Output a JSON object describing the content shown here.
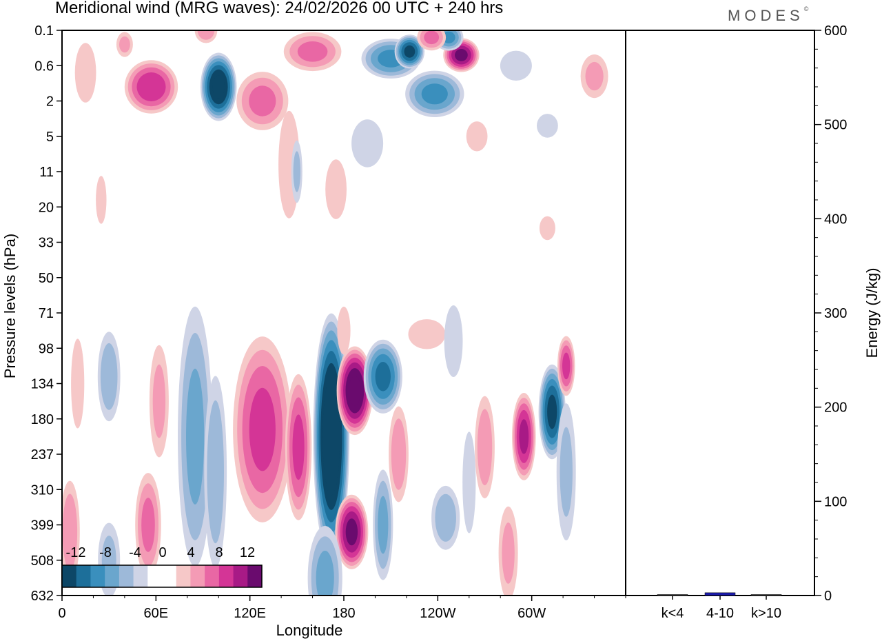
{
  "title": "Meridional wind (MRG waves):  24/02/2026  00 UTC  + 240 hrs",
  "brand": "MODES",
  "brand_mark": "©",
  "colors": {
    "neg": [
      "#0d4767",
      "#1d6f9a",
      "#3a8fbd",
      "#6aa6cd",
      "#9db9d9",
      "#cfd4e6"
    ],
    "pos": [
      "#f6c8c8",
      "#f49bb5",
      "#e967a4",
      "#d43596",
      "#a81a86",
      "#6a0b6e"
    ],
    "energy_bar": "#1a1aa8"
  },
  "chart_data": [
    {
      "type": "heatmap",
      "xlabel": "Longitude",
      "ylabel": "Pressure levels (hPa)",
      "x_ticks": [
        "0",
        "60E",
        "120E",
        "180",
        "120W",
        "60W"
      ],
      "y_ticks": [
        "0.1",
        "0.6",
        "2",
        "5",
        "11",
        "20",
        "33",
        "50",
        "71",
        "98",
        "134",
        "180",
        "237",
        "310",
        "399",
        "508",
        "632"
      ],
      "colorbar_labels": [
        "-12",
        "-8",
        "-4",
        "0",
        "4",
        "8",
        "12"
      ],
      "colorbar_levels": [
        -14,
        -12,
        -10,
        -8,
        -6,
        -4,
        -2,
        2,
        4,
        6,
        8,
        10,
        12,
        14
      ],
      "features": [
        {
          "lon": 172,
          "level": 11.5,
          "w": 12,
          "h": 3.6,
          "v": -16
        },
        {
          "lon": 187,
          "level": 10.2,
          "w": 12,
          "h": 1.3,
          "v": 14
        },
        {
          "lon": 205,
          "level": 9.8,
          "w": 13,
          "h": 1.1,
          "v": -10
        },
        {
          "lon": 185,
          "level": 14.2,
          "w": 11,
          "h": 1.1,
          "v": 12
        },
        {
          "lon": 128,
          "level": 11.3,
          "w": 20,
          "h": 2.8,
          "v": 8
        },
        {
          "lon": 151,
          "level": 11.8,
          "w": 9,
          "h": 2.2,
          "v": 8
        },
        {
          "lon": 295,
          "level": 11.5,
          "w": 8,
          "h": 1.3,
          "v": 10
        },
        {
          "lon": 313,
          "level": 10.8,
          "w": 9,
          "h": 1.4,
          "v": -12
        },
        {
          "lon": 322,
          "level": 9.5,
          "w": 6,
          "h": 0.9,
          "v": 8
        },
        {
          "lon": 30,
          "level": 9.8,
          "w": 8,
          "h": 1.4,
          "v": -5
        },
        {
          "lon": 85,
          "level": 11.5,
          "w": 12,
          "h": 4.0,
          "v": -6
        },
        {
          "lon": 98,
          "level": 12.5,
          "w": 8,
          "h": 3.0,
          "v": -5
        },
        {
          "lon": 62,
          "level": 10.5,
          "w": 7,
          "h": 1.8,
          "v": 4
        },
        {
          "lon": 55,
          "level": 14.0,
          "w": 9,
          "h": 1.6,
          "v": 6
        },
        {
          "lon": 5,
          "level": 14.2,
          "w": 7,
          "h": 1.6,
          "v": 5
        },
        {
          "lon": 10,
          "level": 10.0,
          "w": 5,
          "h": 1.5,
          "v": 3
        },
        {
          "lon": 30,
          "level": 15.0,
          "w": 8,
          "h": 1.2,
          "v": -4
        },
        {
          "lon": 168,
          "level": 15.5,
          "w": 12,
          "h": 1.6,
          "v": -6
        },
        {
          "lon": 205,
          "level": 14.0,
          "w": 7,
          "h": 1.7,
          "v": -6
        },
        {
          "lon": 215,
          "level": 12.0,
          "w": 7,
          "h": 1.5,
          "v": 5
        },
        {
          "lon": 245,
          "level": 13.8,
          "w": 10,
          "h": 1.0,
          "v": -5
        },
        {
          "lon": 270,
          "level": 11.8,
          "w": 7,
          "h": 1.6,
          "v": 5
        },
        {
          "lon": 285,
          "level": 14.8,
          "w": 7,
          "h": 1.5,
          "v": 4
        },
        {
          "lon": 322,
          "level": 12.5,
          "w": 7,
          "h": 2.2,
          "v": -4
        },
        {
          "lon": 260,
          "level": 12.8,
          "w": 5,
          "h": 1.7,
          "v": -3
        },
        {
          "lon": 233,
          "level": 8.6,
          "w": 14,
          "h": 0.5,
          "v": 3
        },
        {
          "lon": 250,
          "level": 8.8,
          "w": 7,
          "h": 1.2,
          "v": -3
        },
        {
          "lon": 180,
          "level": 8.5,
          "w": 5,
          "h": 0.8,
          "v": 3
        },
        {
          "lon": 100,
          "level": 1.6,
          "w": 12,
          "h": 1.0,
          "v": -14
        },
        {
          "lon": 57,
          "level": 1.6,
          "w": 18,
          "h": 0.8,
          "v": 9
        },
        {
          "lon": 128,
          "level": 2.0,
          "w": 18,
          "h": 0.9,
          "v": 6
        },
        {
          "lon": 92,
          "level": 0.0,
          "w": 8,
          "h": 0.4,
          "v": 5
        },
        {
          "lon": 40,
          "level": 0.4,
          "w": 6,
          "h": 0.4,
          "v": 4
        },
        {
          "lon": 160,
          "level": 0.6,
          "w": 20,
          "h": 0.6,
          "v": 6
        },
        {
          "lon": 210,
          "level": 0.8,
          "w": 20,
          "h": 0.6,
          "v": -8
        },
        {
          "lon": 222,
          "level": 0.6,
          "w": 10,
          "h": 0.5,
          "v": -12
        },
        {
          "lon": 255,
          "level": 0.7,
          "w": 12,
          "h": 0.5,
          "v": 12
        },
        {
          "lon": 247,
          "level": 0.2,
          "w": 10,
          "h": 0.4,
          "v": -8
        },
        {
          "lon": 236,
          "level": 0.2,
          "w": 10,
          "h": 0.4,
          "v": 6
        },
        {
          "lon": 238,
          "level": 1.8,
          "w": 20,
          "h": 0.7,
          "v": -8
        },
        {
          "lon": 15,
          "level": 1.2,
          "w": 8,
          "h": 1.0,
          "v": 3
        },
        {
          "lon": 145,
          "level": 3.8,
          "w": 8,
          "h": 1.8,
          "v": 3
        },
        {
          "lon": 175,
          "level": 4.5,
          "w": 8,
          "h": 1.0,
          "v": 3
        },
        {
          "lon": 150,
          "level": 4.0,
          "w": 4,
          "h": 1.0,
          "v": -4
        },
        {
          "lon": 195,
          "level": 3.2,
          "w": 12,
          "h": 0.8,
          "v": -3
        },
        {
          "lon": 265,
          "level": 3.0,
          "w": 8,
          "h": 0.5,
          "v": 3
        },
        {
          "lon": 310,
          "level": 2.7,
          "w": 8,
          "h": 0.4,
          "v": -3
        },
        {
          "lon": 290,
          "level": 1.0,
          "w": 12,
          "h": 0.5,
          "v": -3
        },
        {
          "lon": 340,
          "level": 1.3,
          "w": 10,
          "h": 0.7,
          "v": 4
        },
        {
          "lon": 25,
          "level": 4.8,
          "w": 4,
          "h": 0.8,
          "v": 3
        },
        {
          "lon": 310,
          "level": 5.6,
          "w": 6,
          "h": 0.4,
          "v": 3
        }
      ]
    },
    {
      "type": "bar",
      "ylabel": "Energy (J/kg)",
      "categories": [
        "k<4",
        "4-10",
        "k>10"
      ],
      "values": [
        0.5,
        3,
        0.5
      ],
      "ylim": [
        0,
        600
      ],
      "y_ticks": [
        0,
        100,
        200,
        300,
        400,
        500,
        600
      ]
    }
  ]
}
